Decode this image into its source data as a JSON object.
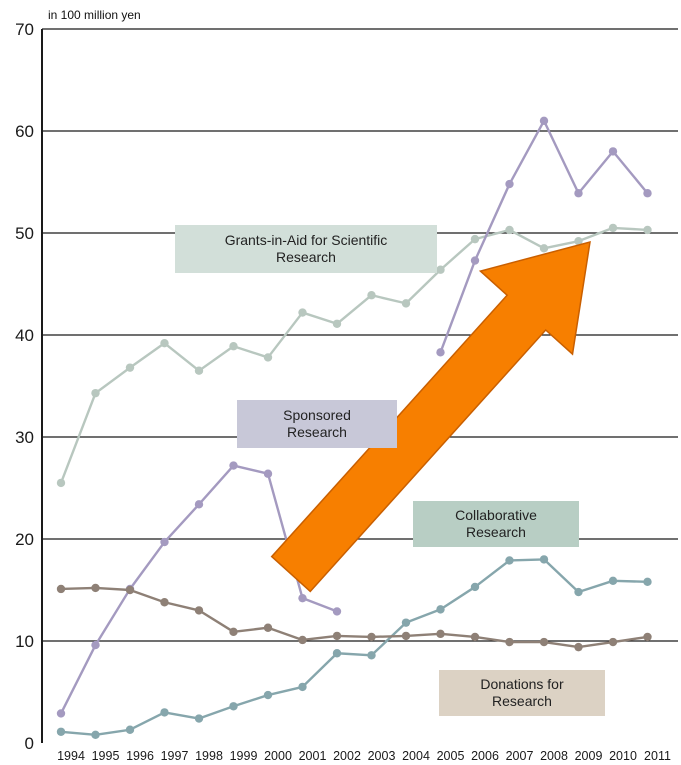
{
  "chart_data": {
    "type": "line",
    "unit_label": "in 100 million yen",
    "categories": [
      "1994",
      "1995",
      "1996",
      "1997",
      "1998",
      "1999",
      "2000",
      "2001",
      "2002",
      "2003",
      "2004",
      "2005",
      "2006",
      "2007",
      "2008",
      "2009",
      "2010",
      "2011"
    ],
    "ylim": [
      0,
      70
    ],
    "y_ticks": [
      "0",
      "10",
      "20",
      "30",
      "40",
      "50",
      "60",
      "70"
    ],
    "grid": true,
    "series": [
      {
        "name": "Grants-in-Aid for Scientific Research",
        "color": "#b8c7bf",
        "values": [
          25.5,
          34.3,
          36.8,
          39.2,
          36.5,
          38.9,
          37.8,
          42.2,
          41.1,
          43.9,
          43.1,
          46.4,
          49.4,
          50.3,
          48.5,
          49.2,
          50.5,
          50.3
        ]
      },
      {
        "name": "Sponsored Research",
        "color": "#a49ac0",
        "values": [
          2.9,
          9.6,
          15.1,
          19.7,
          23.4,
          27.2,
          26.4,
          14.2,
          12.9,
          null,
          null,
          38.3,
          47.3,
          54.8,
          61.0,
          53.9,
          58.0,
          53.9
        ]
      },
      {
        "name": "Collaborative Research",
        "color": "#86a6ac",
        "values": [
          1.1,
          0.8,
          1.3,
          3.0,
          2.4,
          3.6,
          4.7,
          5.5,
          8.8,
          8.6,
          11.8,
          13.1,
          15.3,
          17.9,
          18.0,
          14.8,
          15.9,
          15.8
        ]
      },
      {
        "name": "Donations for Research",
        "color": "#8e8076",
        "values": [
          15.1,
          15.2,
          15.0,
          13.8,
          13.0,
          10.9,
          11.3,
          10.1,
          10.5,
          10.4,
          10.5,
          10.7,
          10.4,
          9.9,
          9.9,
          9.4,
          9.9,
          10.4
        ]
      }
    ],
    "labels": [
      {
        "text": "Grants-in-Aid for Scientific\nResearch",
        "bg": "#d2dfd9"
      },
      {
        "text": "Sponsored\nResearch",
        "bg": "#c8c8d8"
      },
      {
        "text": "Collaborative\nResearch",
        "bg": "#b8cec4"
      },
      {
        "text": "Donations for\nResearch",
        "bg": "#dcd2c4"
      }
    ],
    "arrow_color": "#f77f00"
  }
}
